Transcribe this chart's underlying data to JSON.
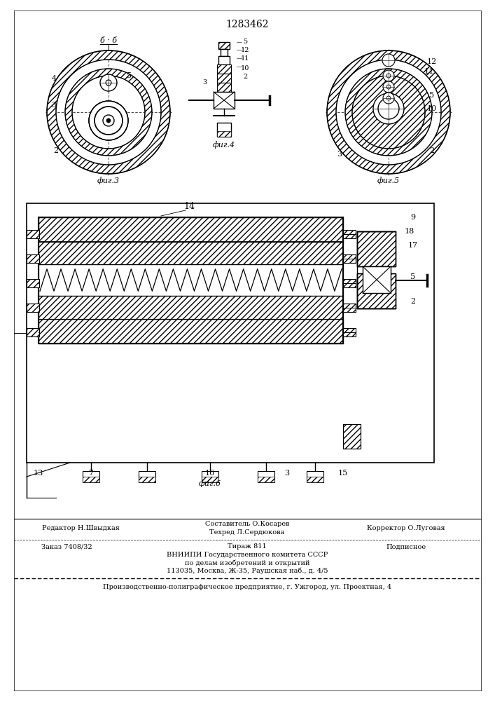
{
  "title": "1283462",
  "background_color": "#ffffff",
  "text_color": "#000000",
  "footer_lines": [
    {
      "left": "Заказ 7408/32",
      "center": "Тираж 811",
      "right": "Подписное"
    },
    {
      "center": "ВНИИПИ Государственного комитета СССР"
    },
    {
      "center": "по делам изобретений и открытий"
    },
    {
      "center": "113035, Москва, Ж-35, Раушская наб., д. 4/5"
    }
  ],
  "last_line": "Производственно-полиграфическое предприятие, г. Ужгород, ул. Проектная, 4",
  "contrib_lines": [
    {
      "left": "Редактор Н.Швыдкая",
      "center": "Составитель О.Косарев",
      "right": "Корректор О.Луговая"
    },
    {
      "center": "Техред Л.Сердюкова"
    }
  ]
}
